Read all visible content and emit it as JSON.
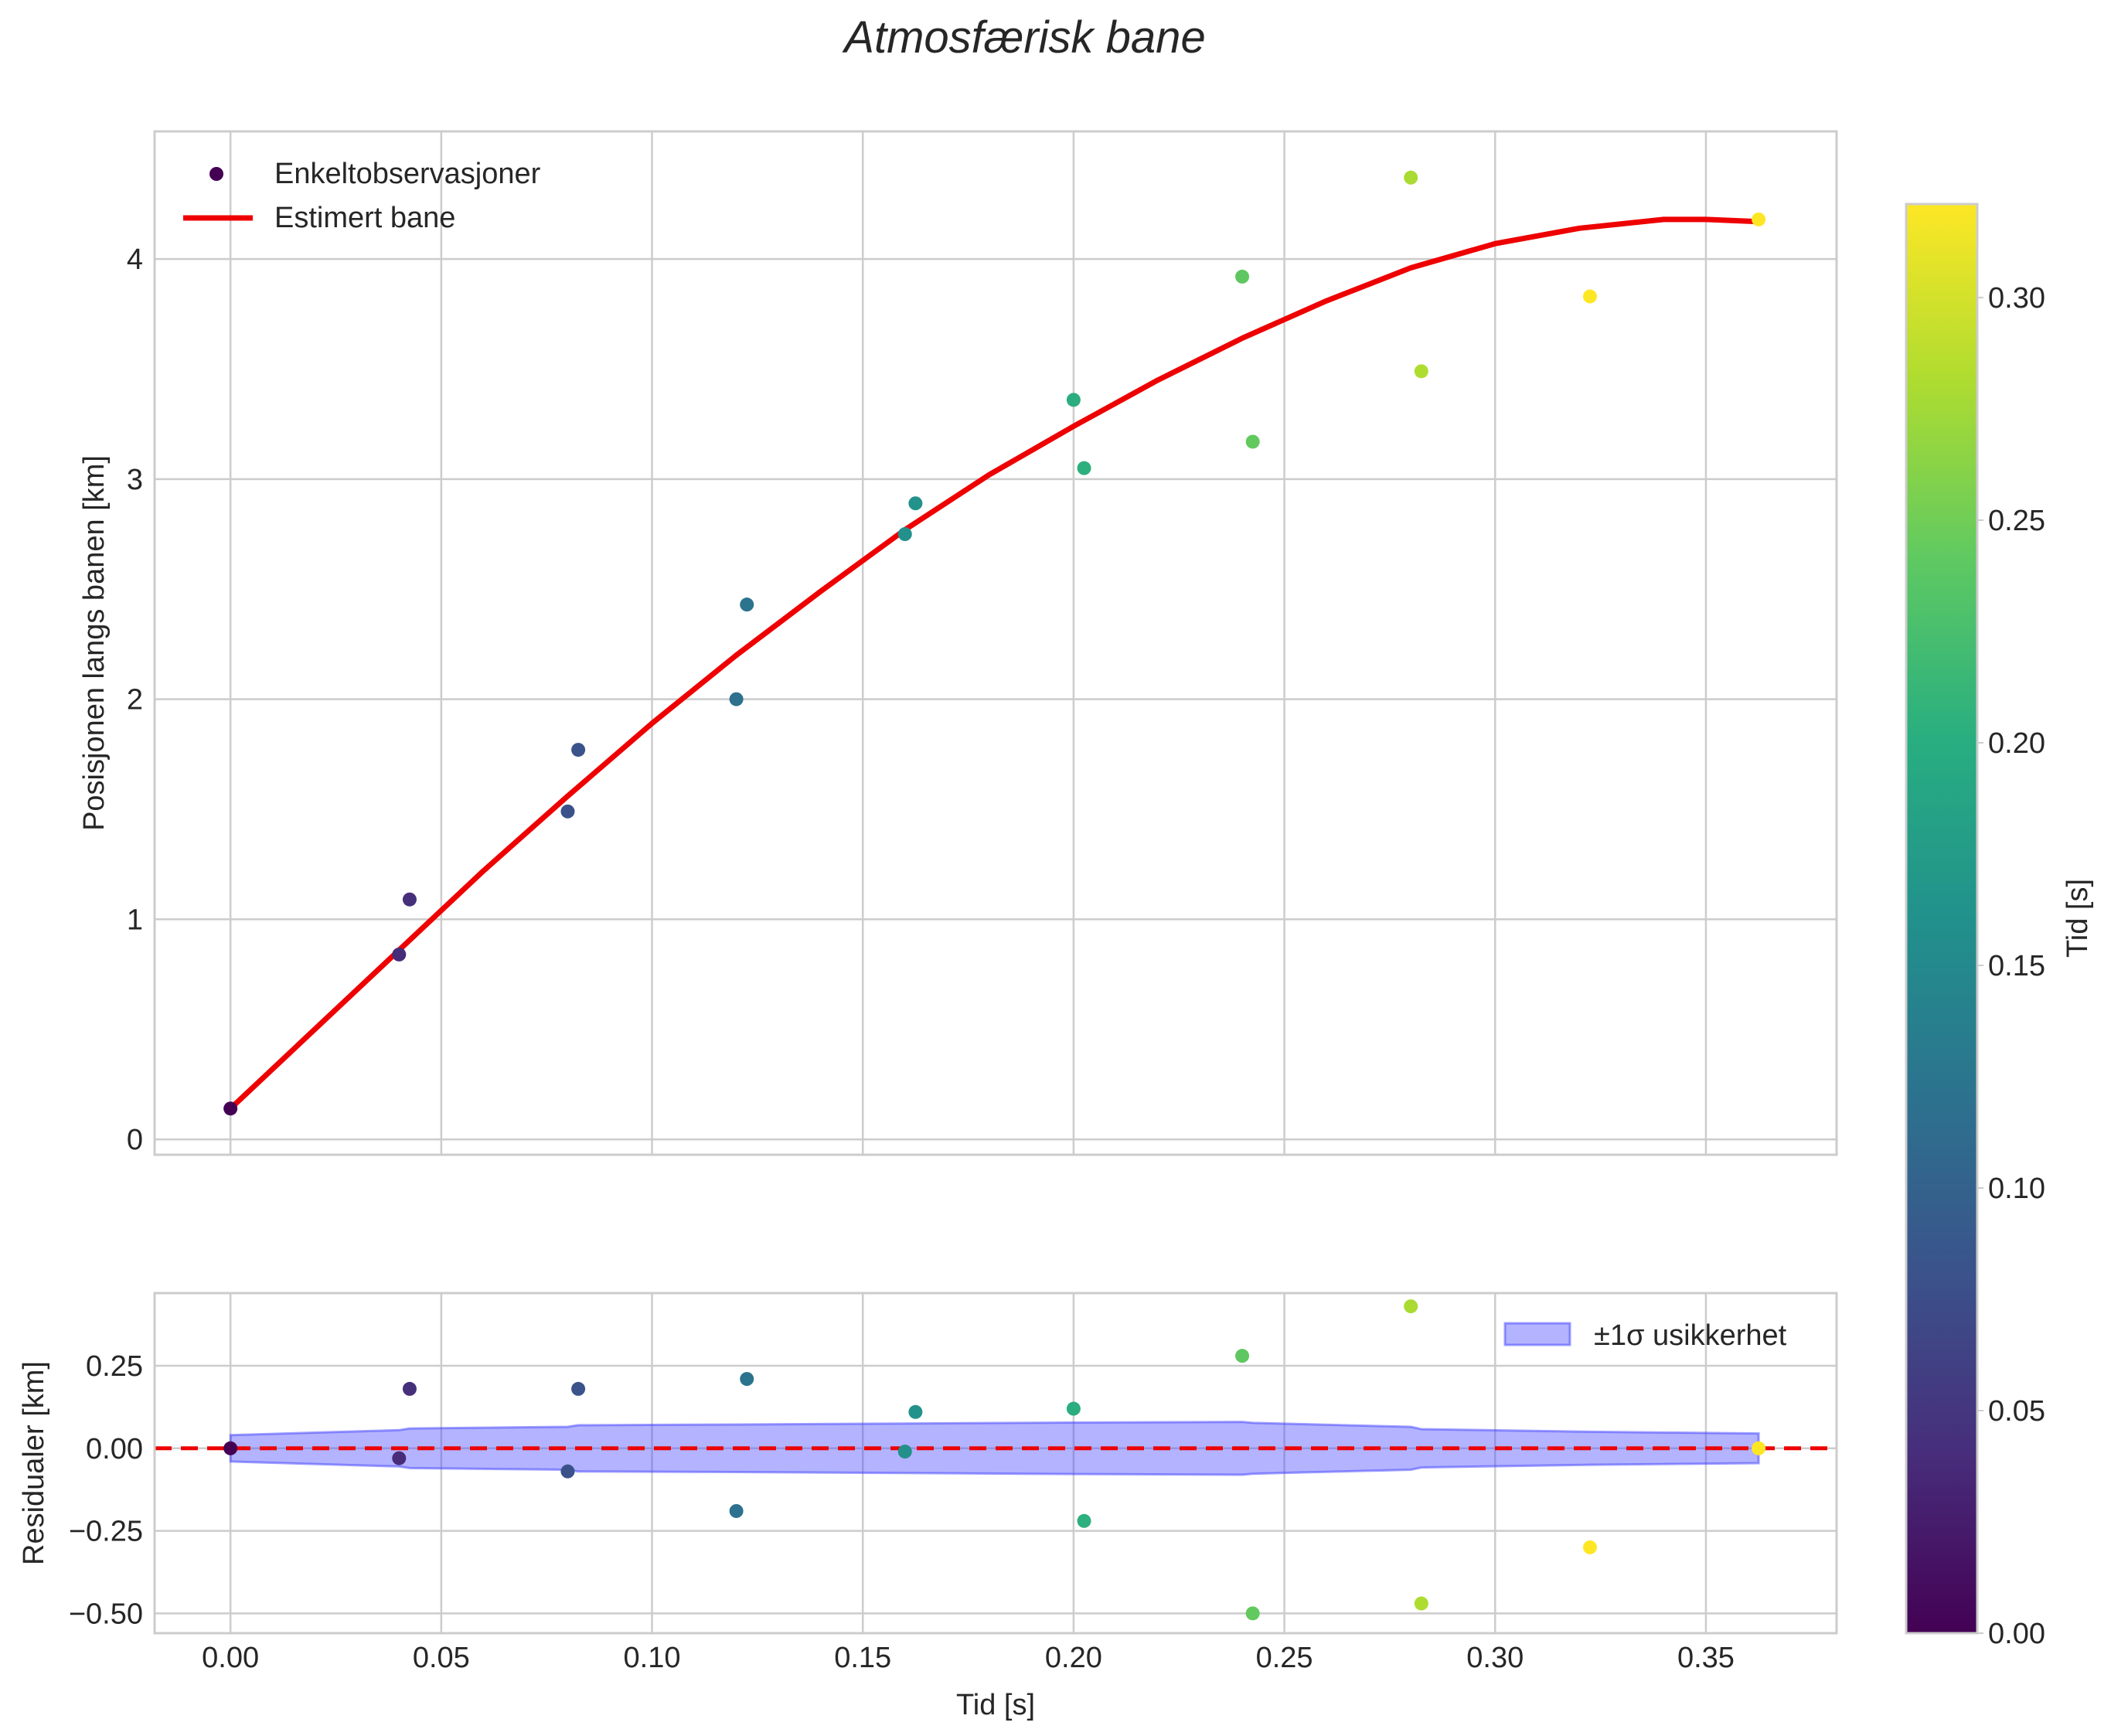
{
  "chart_data": {
    "type": "scatter",
    "title": "Atmosfærisk bane",
    "xlabel": "Tid [s]",
    "xlim": [
      -0.018,
      0.381
    ],
    "xticks": [
      {
        "v": 0.0,
        "label": "0.00"
      },
      {
        "v": 0.05,
        "label": "0.05"
      },
      {
        "v": 0.1,
        "label": "0.10"
      },
      {
        "v": 0.15,
        "label": "0.15"
      },
      {
        "v": 0.2,
        "label": "0.20"
      },
      {
        "v": 0.25,
        "label": "0.25"
      },
      {
        "v": 0.3,
        "label": "0.30"
      },
      {
        "v": 0.35,
        "label": "0.35"
      }
    ],
    "main": {
      "ylabel": "Posisjonen langs banen [km]",
      "ylim": [
        -0.07,
        4.58
      ],
      "yticks": [
        {
          "v": 0,
          "label": "0"
        },
        {
          "v": 1,
          "label": "1"
        },
        {
          "v": 2,
          "label": "2"
        },
        {
          "v": 3,
          "label": "3"
        },
        {
          "v": 4,
          "label": "4"
        }
      ],
      "legend": {
        "location": "upper-left",
        "observations_label": "Enkeltobservasjoner",
        "fit_label": "Estimert bane"
      },
      "observations": [
        {
          "t": 0.0,
          "y": 0.14
        },
        {
          "t": 0.04,
          "y": 0.84
        },
        {
          "t": 0.0425,
          "y": 1.09
        },
        {
          "t": 0.08,
          "y": 1.49
        },
        {
          "t": 0.0825,
          "y": 1.77
        },
        {
          "t": 0.12,
          "y": 2.0
        },
        {
          "t": 0.1225,
          "y": 2.43
        },
        {
          "t": 0.16,
          "y": 2.75
        },
        {
          "t": 0.1625,
          "y": 2.89
        },
        {
          "t": 0.2,
          "y": 3.36
        },
        {
          "t": 0.2025,
          "y": 3.05
        },
        {
          "t": 0.24,
          "y": 3.92
        },
        {
          "t": 0.2425,
          "y": 3.17
        },
        {
          "t": 0.28,
          "y": 4.37
        },
        {
          "t": 0.2825,
          "y": 3.49
        },
        {
          "t": 0.3225,
          "y": 3.83
        },
        {
          "t": 0.3625,
          "y": 4.18
        }
      ],
      "fit_curve": {
        "t": [
          0.0,
          0.02,
          0.04,
          0.06,
          0.08,
          0.1,
          0.12,
          0.14,
          0.16,
          0.18,
          0.2,
          0.22,
          0.24,
          0.26,
          0.28,
          0.3,
          0.32,
          0.34,
          0.35,
          0.3625
        ],
        "y": [
          0.14,
          0.5,
          0.86,
          1.22,
          1.56,
          1.89,
          2.2,
          2.49,
          2.77,
          3.02,
          3.24,
          3.45,
          3.64,
          3.81,
          3.96,
          4.07,
          4.14,
          4.18,
          4.18,
          4.17
        ],
        "color": "#ee0000"
      }
    },
    "residuals": {
      "ylabel": "Residualer [km]",
      "ylim": [
        -0.56,
        0.47
      ],
      "yticks": [
        {
          "v": -0.5,
          "label": "−0.50"
        },
        {
          "v": -0.25,
          "label": "−0.25"
        },
        {
          "v": 0.0,
          "label": "0.00"
        },
        {
          "v": 0.25,
          "label": "0.25"
        }
      ],
      "legend": {
        "location": "upper-right",
        "band_label": "±1σ usikkerhet"
      },
      "zero_line_color": "#ee0000",
      "band_color": "#4040ff",
      "uncertainty_band": {
        "t": [
          0.0,
          0.04,
          0.0425,
          0.08,
          0.0825,
          0.12,
          0.16,
          0.2,
          0.24,
          0.2425,
          0.28,
          0.2825,
          0.3225,
          0.3625
        ],
        "sigma": [
          0.04,
          0.055,
          0.06,
          0.065,
          0.07,
          0.072,
          0.075,
          0.078,
          0.08,
          0.077,
          0.065,
          0.058,
          0.05,
          0.045
        ]
      },
      "points": [
        {
          "t": 0.0,
          "r": 0.0
        },
        {
          "t": 0.04,
          "r": -0.03
        },
        {
          "t": 0.0425,
          "r": 0.18
        },
        {
          "t": 0.08,
          "r": -0.07
        },
        {
          "t": 0.0825,
          "r": 0.18
        },
        {
          "t": 0.12,
          "r": -0.19
        },
        {
          "t": 0.1225,
          "r": 0.21
        },
        {
          "t": 0.16,
          "r": -0.01
        },
        {
          "t": 0.1625,
          "r": 0.11
        },
        {
          "t": 0.2,
          "r": 0.12
        },
        {
          "t": 0.2025,
          "r": -0.22
        },
        {
          "t": 0.24,
          "r": 0.28
        },
        {
          "t": 0.2425,
          "r": -0.5
        },
        {
          "t": 0.28,
          "r": 0.43
        },
        {
          "t": 0.2825,
          "r": -0.47
        },
        {
          "t": 0.3225,
          "r": -0.3
        },
        {
          "t": 0.3625,
          "r": 0.0
        }
      ]
    },
    "colorbar": {
      "label": "Tid [s]",
      "colormap": "viridis",
      "range": [
        0.0,
        0.321
      ],
      "ticks": [
        {
          "v": 0.0,
          "label": "0.00"
        },
        {
          "v": 0.05,
          "label": "0.05"
        },
        {
          "v": 0.1,
          "label": "0.10"
        },
        {
          "v": 0.15,
          "label": "0.15"
        },
        {
          "v": 0.2,
          "label": "0.20"
        },
        {
          "v": 0.25,
          "label": "0.25"
        },
        {
          "v": 0.3,
          "label": "0.30"
        }
      ]
    }
  }
}
